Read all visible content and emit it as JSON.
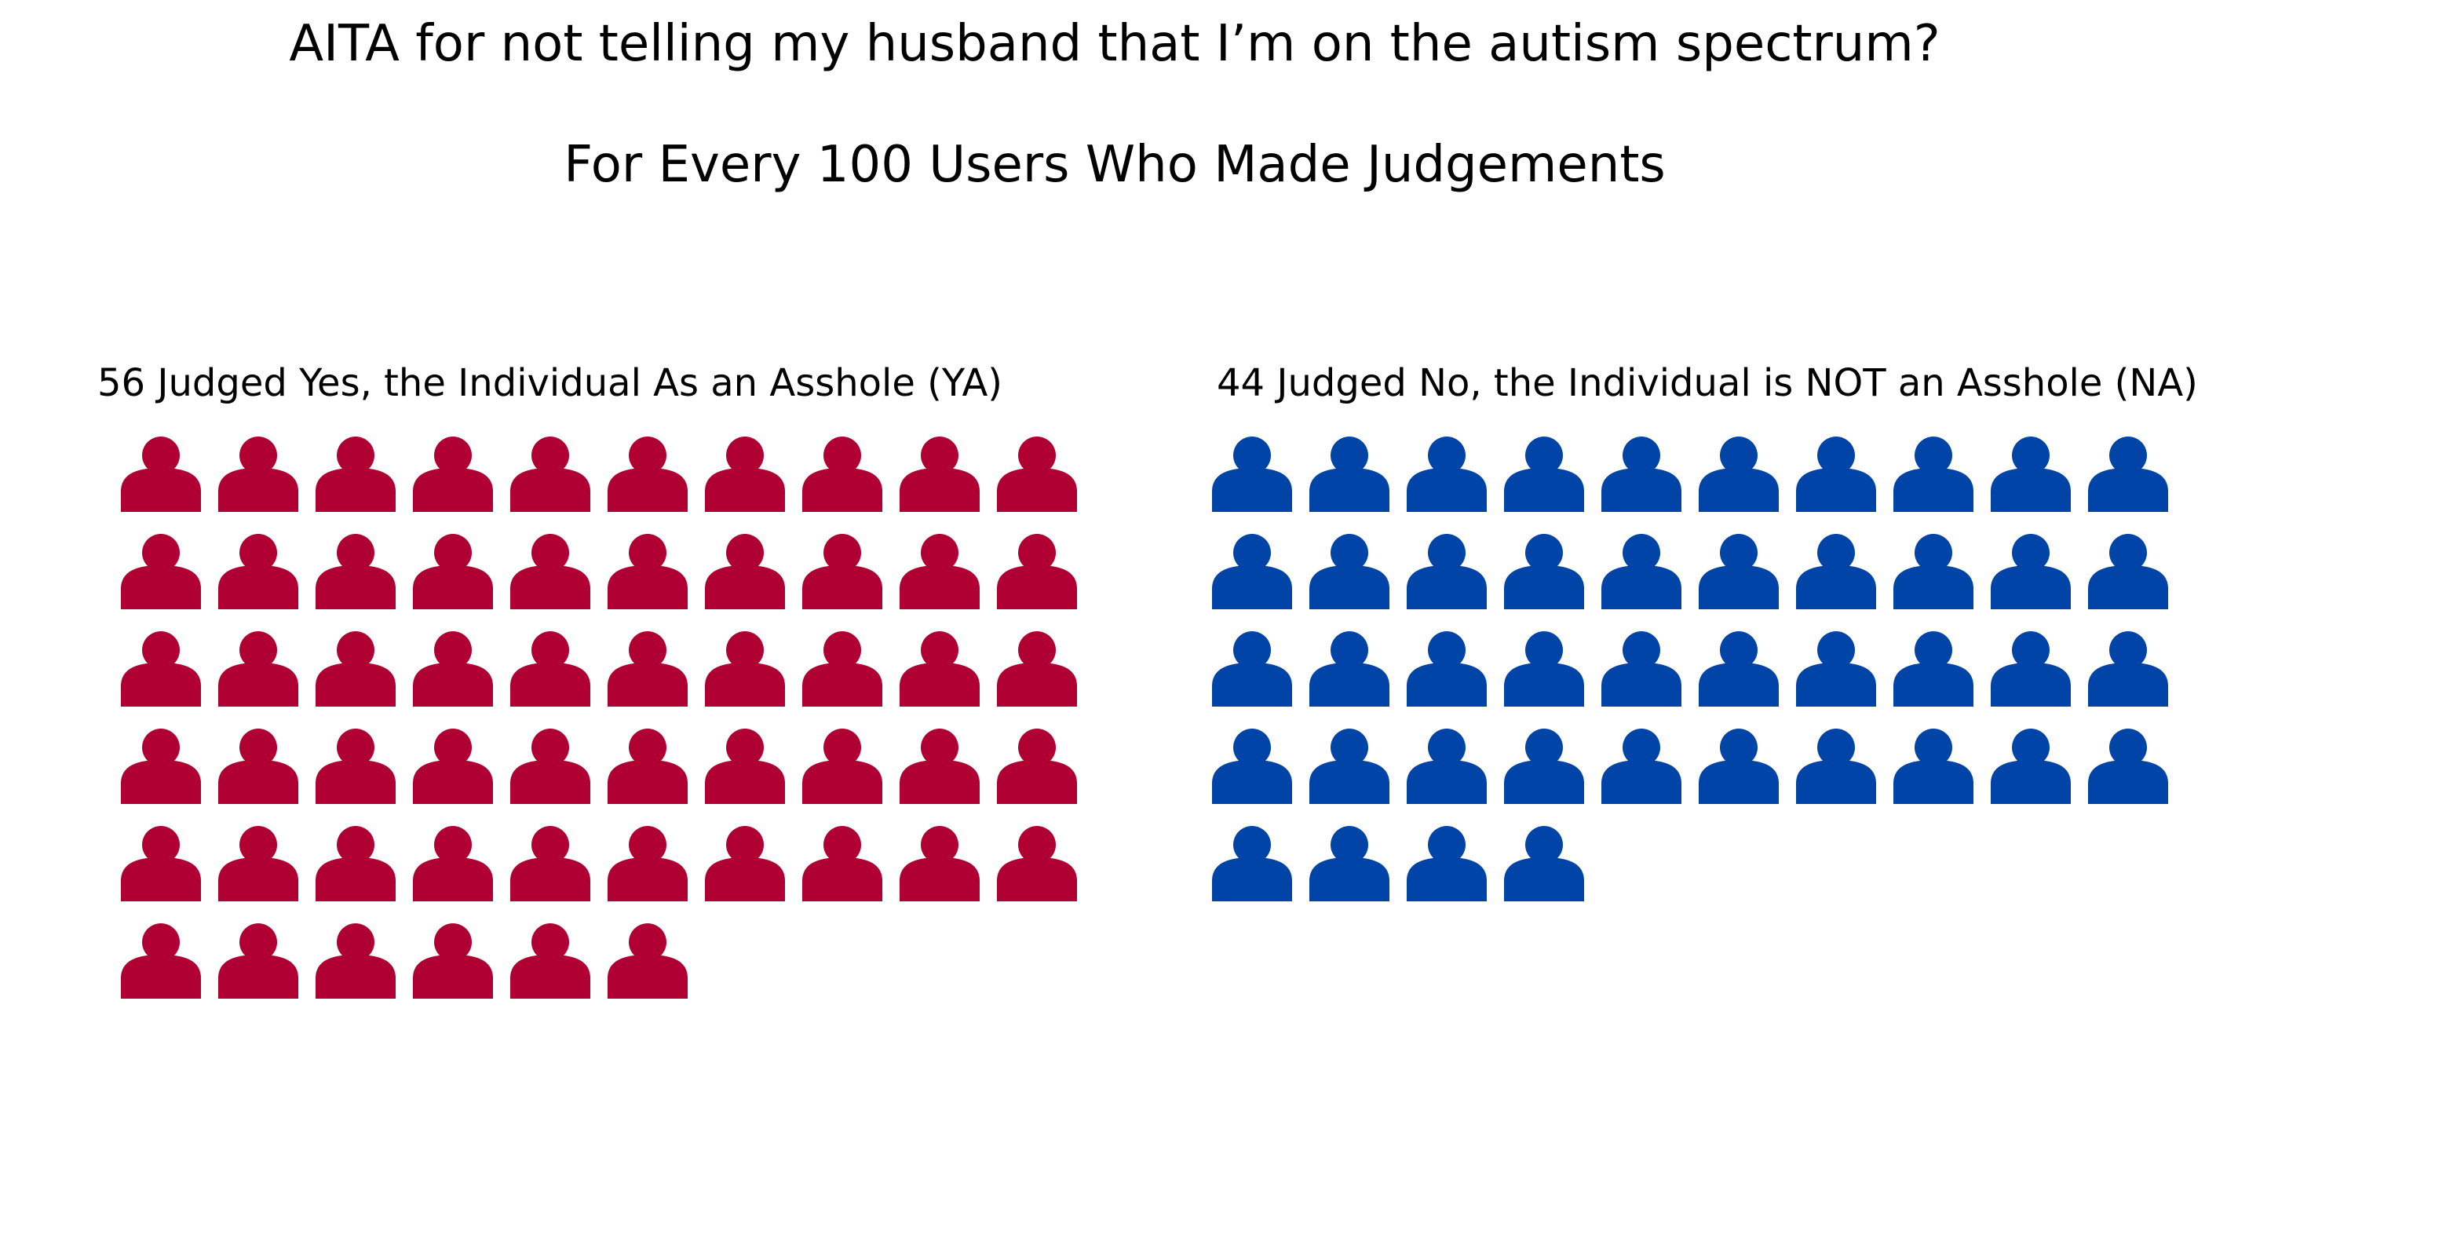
{
  "chart_data": {
    "type": "pictograph",
    "title": "AITA for not telling my husband that I’m on the autism spectrum?",
    "subtitle": "For Every 100 Users Who Made Judgements",
    "total": 100,
    "icon": "person-icon",
    "icons_per_row": 10,
    "groups": [
      {
        "key": "ya",
        "label": "56 Judged Yes, the Individual As an Asshole (YA)",
        "count": 56,
        "color": "#b00033"
      },
      {
        "key": "na",
        "label": "44 Judged No, the Individual is NOT an Asshole (NA)",
        "count": 44,
        "color": "#0044a8"
      }
    ]
  }
}
